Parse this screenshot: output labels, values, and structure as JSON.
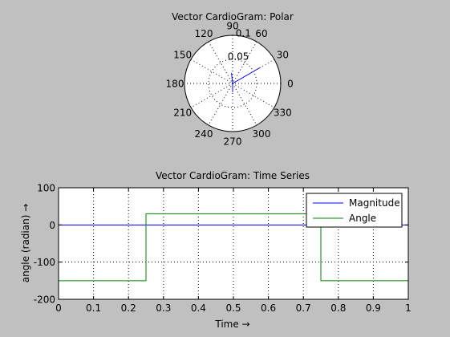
{
  "figure": {
    "background": "#c0c0c0",
    "axes_background": "#ffffff"
  },
  "chart_data": [
    {
      "type": "polar",
      "title": "Vector CardioGram: Polar",
      "angle_ticks": [
        "0",
        "30",
        "60",
        "90",
        "120",
        "150",
        "180",
        "210",
        "240",
        "270",
        "300",
        "330"
      ],
      "angle_tick_values_deg": [
        0,
        30,
        60,
        90,
        120,
        150,
        180,
        210,
        240,
        270,
        300,
        330
      ],
      "radial_ticks": [
        "0.05",
        "0.1"
      ],
      "radial_tick_values": [
        0.05,
        0.1
      ],
      "rmax": 0.1,
      "grid": true,
      "series": [
        {
          "color": "#0000ff",
          "segments": [
            [
              [
                0,
                0
              ],
              [
                30,
                0.065
              ]
            ],
            [
              [
                0,
                0
              ],
              [
                96,
                0.022
              ]
            ],
            [
              [
                0,
                0
              ],
              [
                270,
                0.018
              ]
            ]
          ]
        }
      ]
    },
    {
      "type": "line",
      "title": "Vector CardioGram: Time Series",
      "xlabel": "Time →",
      "ylabel": "angle (radian) →",
      "xlim": [
        0,
        1
      ],
      "ylim": [
        -200,
        100
      ],
      "xticks": [
        0,
        0.1,
        0.2,
        0.3,
        0.4,
        0.5,
        0.6,
        0.7,
        0.8,
        0.9,
        1
      ],
      "xtick_labels": [
        "0",
        "0.1",
        "0.2",
        "0.3",
        "0.4",
        "0.5",
        "0.6",
        "0.7",
        "0.8",
        "0.9",
        "1"
      ],
      "yticks": [
        -200,
        -100,
        0,
        100
      ],
      "ytick_labels": [
        "-200",
        "-100",
        "0",
        "100"
      ],
      "grid": true,
      "legend_position": "top-right",
      "series": [
        {
          "name": "Magnitude",
          "color": "#0000ff",
          "x": [
            0,
            1
          ],
          "y": [
            0,
            0
          ]
        },
        {
          "name": "Angle",
          "color": "#008000",
          "x": [
            0,
            0.25,
            0.25,
            0.75,
            0.75,
            1
          ],
          "y": [
            -150,
            -150,
            30,
            30,
            -150,
            -150
          ]
        }
      ]
    }
  ]
}
